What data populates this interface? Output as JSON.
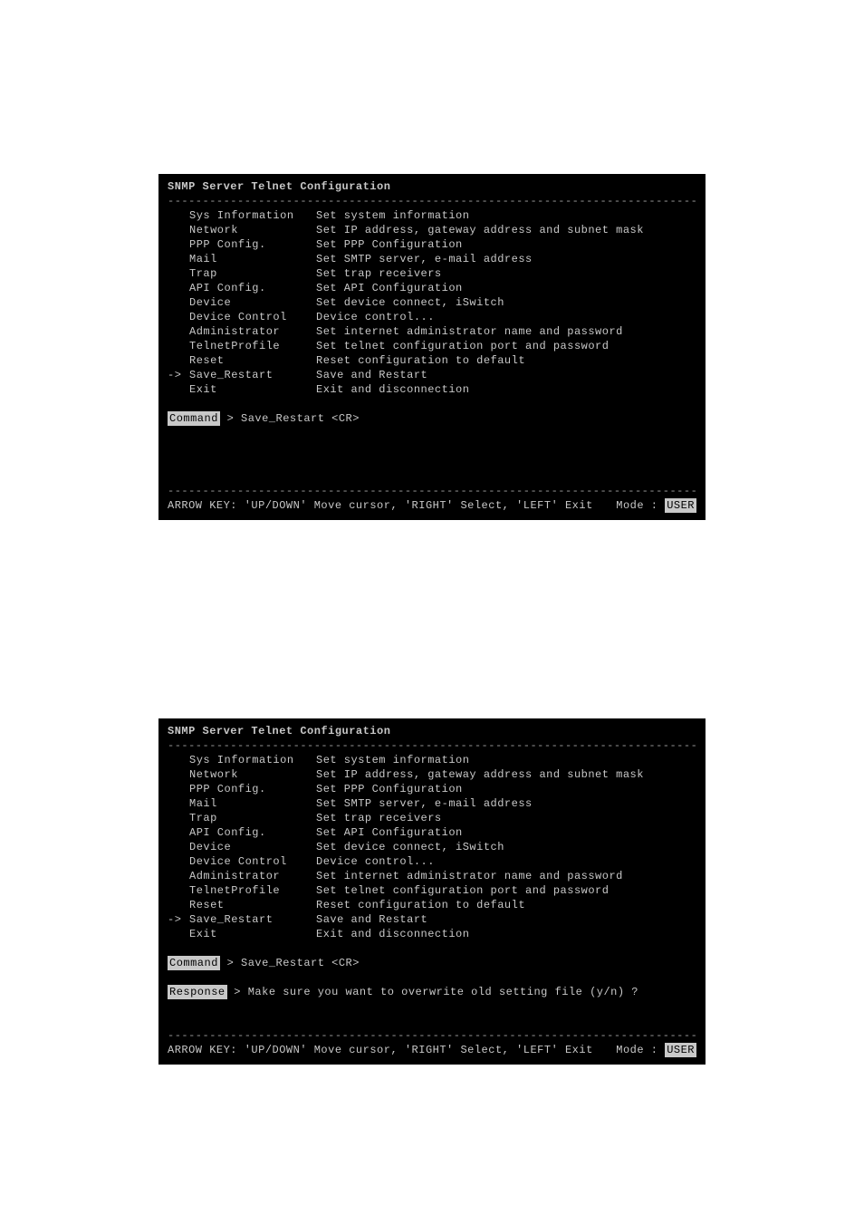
{
  "dash_line": "------------------------------------------------------------------------------",
  "colors": {
    "bg": "#000000",
    "fg": "#c8c8c8",
    "inv_bg": "#c8c8c8",
    "inv_fg": "#000000"
  },
  "screen1": {
    "title": "SNMP Server Telnet Configuration",
    "selected_index": 11,
    "menu": [
      {
        "label": "Sys Information",
        "desc": "Set system information"
      },
      {
        "label": "Network",
        "desc": "Set IP address, gateway address and subnet mask"
      },
      {
        "label": "PPP Config.",
        "desc": "Set PPP Configuration"
      },
      {
        "label": "Mail",
        "desc": "Set SMTP server, e-mail address"
      },
      {
        "label": "Trap",
        "desc": "Set trap receivers"
      },
      {
        "label": "API Config.",
        "desc": "Set API Configuration"
      },
      {
        "label": "Device",
        "desc": "Set device connect, iSwitch"
      },
      {
        "label": "Device Control",
        "desc": "Device control..."
      },
      {
        "label": "Administrator",
        "desc": "Set internet administrator name and password"
      },
      {
        "label": "TelnetProfile",
        "desc": "Set telnet configuration port and password"
      },
      {
        "label": "Reset",
        "desc": "Reset configuration to default"
      },
      {
        "label": "Save_Restart",
        "desc": "Save and Restart"
      },
      {
        "label": "Exit",
        "desc": "Exit and disconnection"
      }
    ],
    "command_label": "Command",
    "command_text": " > Save_Restart <CR>",
    "has_response": false,
    "footer_help": "ARROW KEY: 'UP/DOWN' Move cursor, 'RIGHT' Select, 'LEFT' Exit",
    "footer_mode_label": "Mode : ",
    "footer_mode_value": "USER"
  },
  "screen2": {
    "title": "SNMP Server Telnet Configuration",
    "selected_index": 11,
    "menu": [
      {
        "label": "Sys Information",
        "desc": "Set system information"
      },
      {
        "label": "Network",
        "desc": "Set IP address, gateway address and subnet mask"
      },
      {
        "label": "PPP Config.",
        "desc": "Set PPP Configuration"
      },
      {
        "label": "Mail",
        "desc": "Set SMTP server, e-mail address"
      },
      {
        "label": "Trap",
        "desc": "Set trap receivers"
      },
      {
        "label": "API Config.",
        "desc": "Set API Configuration"
      },
      {
        "label": "Device",
        "desc": "Set device connect, iSwitch"
      },
      {
        "label": "Device Control",
        "desc": "Device control..."
      },
      {
        "label": "Administrator",
        "desc": "Set internet administrator name and password"
      },
      {
        "label": "TelnetProfile",
        "desc": "Set telnet configuration port and password"
      },
      {
        "label": "Reset",
        "desc": "Reset configuration to default"
      },
      {
        "label": "Save_Restart",
        "desc": "Save and Restart"
      },
      {
        "label": "Exit",
        "desc": "Exit and disconnection"
      }
    ],
    "command_label": "Command",
    "command_text": " > Save_Restart <CR>",
    "has_response": true,
    "response_label": "Response",
    "response_text": " > Make sure you want to overwrite old setting file (y/n) ?",
    "footer_help": "ARROW KEY: 'UP/DOWN' Move cursor, 'RIGHT' Select, 'LEFT' Exit",
    "footer_mode_label": "Mode : ",
    "footer_mode_value": "USER"
  }
}
